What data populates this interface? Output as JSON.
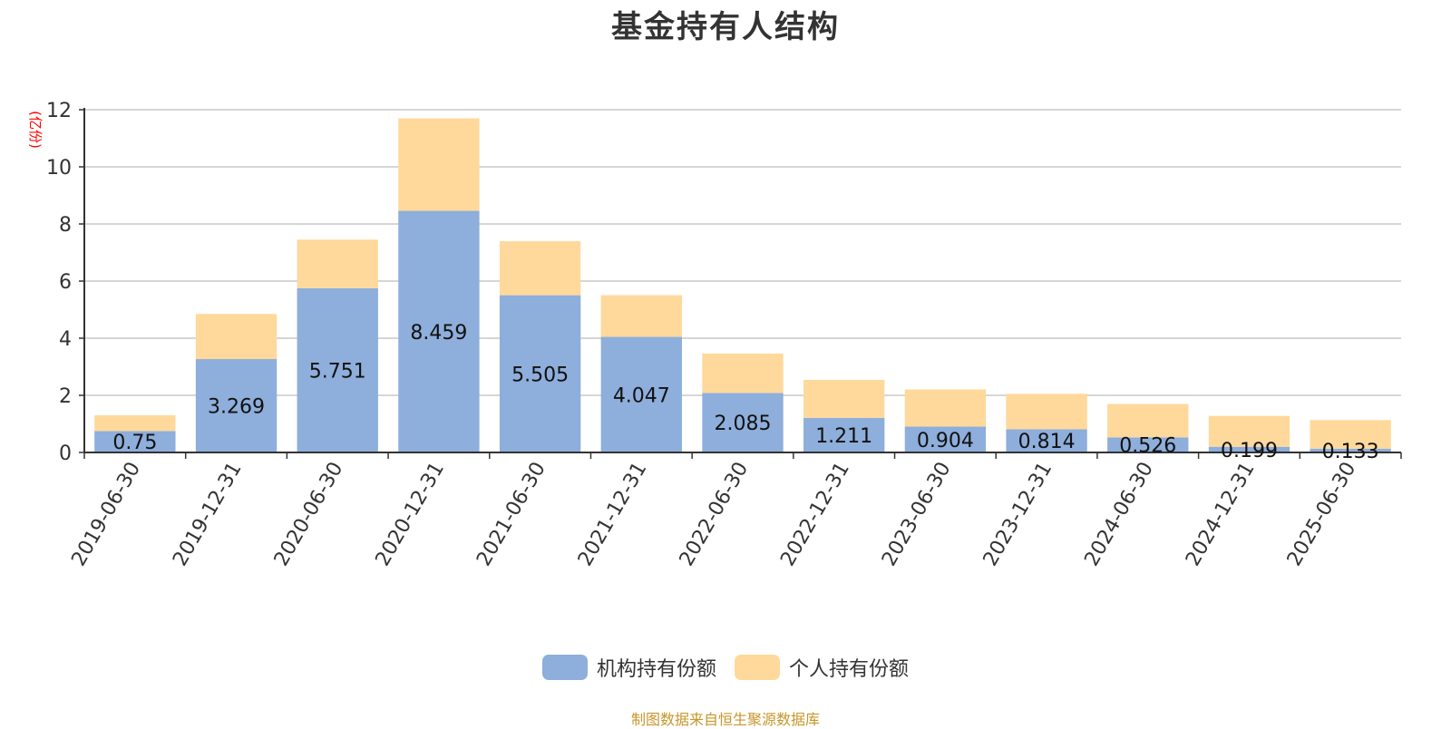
{
  "chart_data": {
    "type": "bar",
    "stacked": true,
    "title": "基金持有人结构",
    "ylabel": "(亿份)",
    "xlabel": "",
    "ylim": [
      0,
      12
    ],
    "yticks": [
      0,
      2,
      4,
      6,
      8,
      10,
      12
    ],
    "grid": true,
    "legend_position": "bottom-center",
    "categories": [
      "2019-06-30",
      "2019-12-31",
      "2020-06-30",
      "2020-12-31",
      "2021-06-30",
      "2021-12-31",
      "2022-06-30",
      "2022-12-31",
      "2023-06-30",
      "2023-12-31",
      "2024-06-30",
      "2024-12-31",
      "2025-06-30"
    ],
    "series": [
      {
        "name": "机构持有份额",
        "color": "#8eaedb",
        "values": [
          0.75,
          3.269,
          5.751,
          8.459,
          5.505,
          4.047,
          2.085,
          1.211,
          0.904,
          0.814,
          0.526,
          0.199,
          0.133
        ],
        "labels": [
          "0.75",
          "3.269",
          "5.751",
          "8.459",
          "5.505",
          "4.047",
          "2.085",
          "1.211",
          "0.904",
          "0.814",
          "0.526",
          "0.199",
          "0.133"
        ]
      },
      {
        "name": "个人持有份额",
        "color": "#fed99b",
        "values": [
          0.55,
          1.58,
          1.7,
          3.24,
          1.89,
          1.46,
          1.38,
          1.33,
          1.3,
          1.24,
          1.17,
          1.08,
          1.0
        ]
      }
    ]
  },
  "source_note": "制图数据来自恒生聚源数据库"
}
